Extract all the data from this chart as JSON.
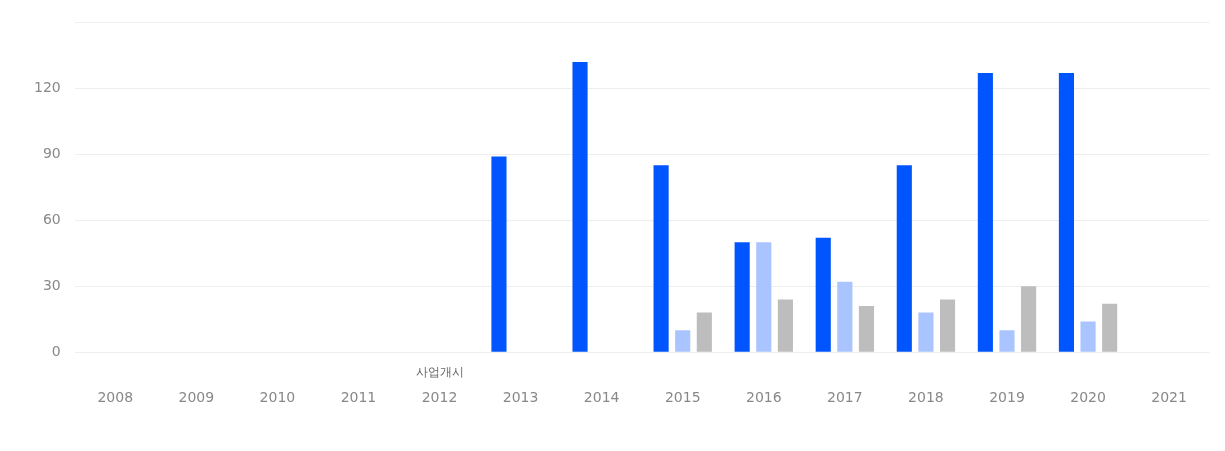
{
  "chart_data": {
    "type": "bar",
    "categories": [
      "2008",
      "2009",
      "2010",
      "2011",
      "2012",
      "2013",
      "2014",
      "2015",
      "2016",
      "2017",
      "2018",
      "2019",
      "2020",
      "2021"
    ],
    "series": [
      {
        "color": "#0055ff",
        "values": [
          null,
          null,
          null,
          null,
          null,
          89,
          132,
          85,
          50,
          52,
          85,
          127,
          127,
          null
        ]
      },
      {
        "color": "#a9c4ff",
        "values": [
          null,
          null,
          null,
          null,
          null,
          null,
          null,
          10,
          50,
          32,
          18,
          10,
          14,
          null
        ]
      },
      {
        "color": "#bdbdbd",
        "values": [
          null,
          null,
          null,
          null,
          null,
          null,
          null,
          18,
          24,
          21,
          24,
          30,
          22,
          null
        ]
      }
    ],
    "ylim": [
      0,
      150
    ],
    "yticks": [
      0,
      30,
      60,
      90,
      120,
      {
        "value": 150,
        "label": null
      }
    ],
    "grid": "y",
    "legend": false,
    "annotations": [
      "사업개시"
    ]
  }
}
